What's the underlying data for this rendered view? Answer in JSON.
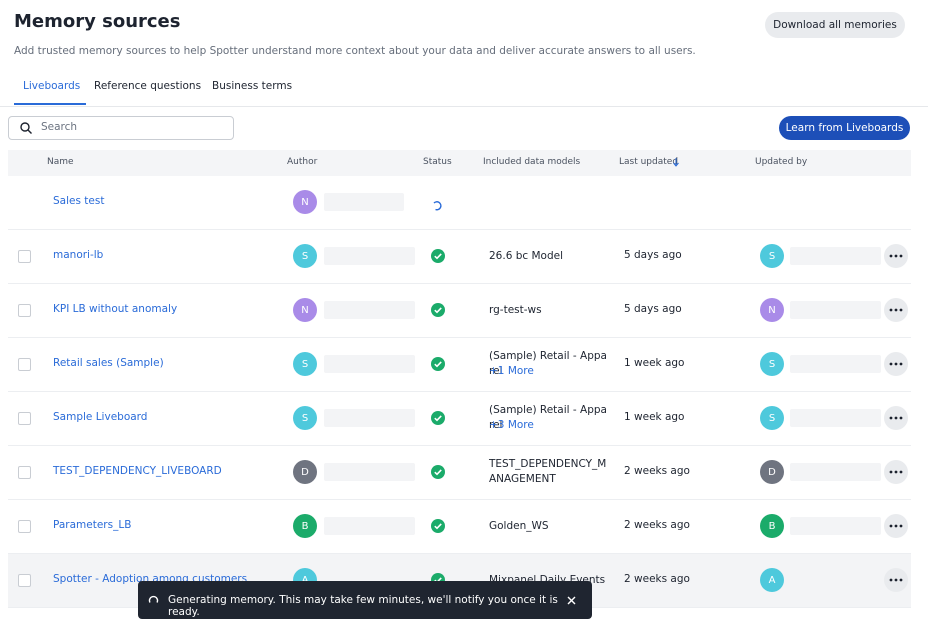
{
  "header": {
    "title": "Memory sources",
    "subtitle": "Add trusted memory sources to help Spotter understand more context about your data and deliver accurate answers to all users.",
    "download_button": "Download all memories"
  },
  "tabs": [
    "Liveboards",
    "Reference questions",
    "Business terms"
  ],
  "search_placeholder": "Search",
  "learn_button": "Learn from Liveboards",
  "table": {
    "columns": [
      "Name",
      "Author",
      "Status",
      "Included data models",
      "Last updated",
      "Updated by"
    ],
    "rows": [
      {
        "name": "Sales test",
        "author": "N"
      },
      {
        "name": "manori-lb",
        "author": "S",
        "model": "26.6 bc Model",
        "last_updated": "5 days ago",
        "updated_by": "S"
      },
      {
        "name": "KPI LB without anomaly",
        "author": "N",
        "model": "rg-test-ws",
        "last_updated": "5 days ago",
        "updated_by": "N"
      },
      {
        "name": "Retail sales (Sample)",
        "author": "S",
        "model": "(Sample) Retail - Apparel",
        "more": "+1 More",
        "last_updated": "1 week ago",
        "updated_by": "S"
      },
      {
        "name": "Sample Liveboard",
        "author": "S",
        "model": "(Sample) Retail - Apparel",
        "more": "+3 More",
        "last_updated": "1 week ago",
        "updated_by": "S"
      },
      {
        "name": "TEST_DEPENDENCY_LIVEBOARD",
        "author": "D",
        "model": "TEST_DEPENDENCY_MANAGEMENT",
        "last_updated": "2 weeks ago",
        "updated_by": "D"
      },
      {
        "name": "Parameters_LB",
        "author": "B",
        "model": "Golden_WS",
        "last_updated": "2 weeks ago",
        "updated_by": "B"
      },
      {
        "name": "Spotter - Adoption among customers",
        "author": "A",
        "model": "Mixpanel Daily Events",
        "last_updated": "2 weeks ago",
        "updated_by": "A"
      }
    ]
  },
  "toast": "Generating memory. This may take few minutes, we'll notify you once it is ready."
}
